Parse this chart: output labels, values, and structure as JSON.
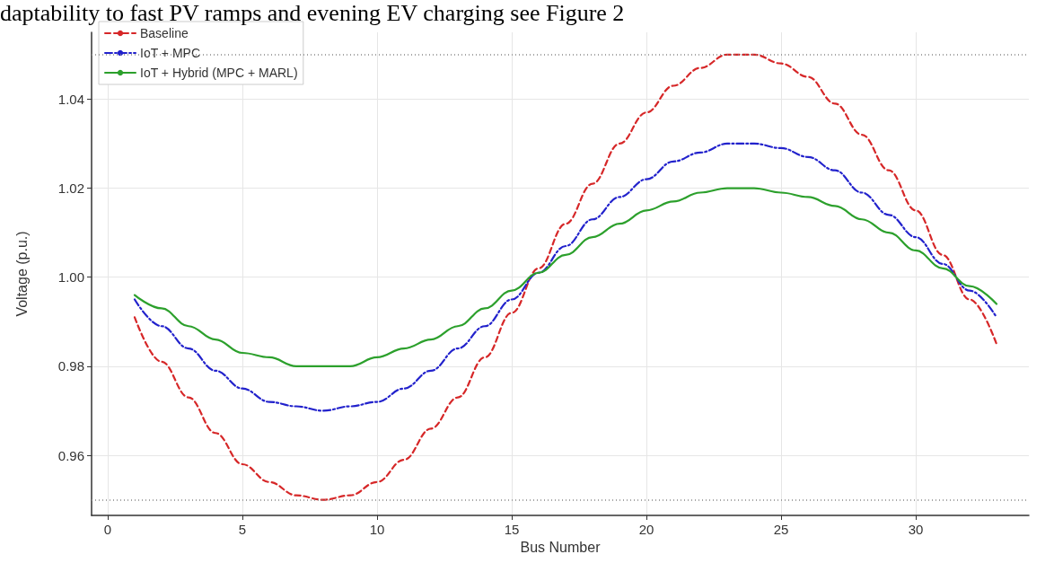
{
  "chart_data": {
    "type": "line",
    "annotations": [
      "daptability to fast PV ramps and evening EV charging see Figure 2"
    ],
    "xlabel": "Bus Number",
    "ylabel": "Voltage (p.u.)",
    "x": [
      1,
      2,
      3,
      4,
      5,
      6,
      7,
      8,
      9,
      10,
      11,
      12,
      13,
      14,
      15,
      16,
      17,
      18,
      19,
      20,
      21,
      22,
      23,
      24,
      25,
      26,
      27,
      28,
      29,
      30,
      31,
      32,
      33
    ],
    "series": [
      {
        "name": "Baseline",
        "color": "#d62728",
        "line_style": "dashed",
        "values": [
          0.991,
          0.981,
          0.973,
          0.965,
          0.958,
          0.954,
          0.951,
          0.95,
          0.951,
          0.954,
          0.959,
          0.966,
          0.973,
          0.982,
          0.992,
          1.002,
          1.012,
          1.021,
          1.03,
          1.037,
          1.043,
          1.047,
          1.05,
          1.05,
          1.048,
          1.045,
          1.039,
          1.032,
          1.024,
          1.015,
          1.005,
          0.995,
          0.985
        ]
      },
      {
        "name": "IoT + MPC",
        "color": "#2222cc",
        "line_style": "dashdot",
        "values": [
          0.995,
          0.989,
          0.984,
          0.979,
          0.975,
          0.972,
          0.971,
          0.97,
          0.971,
          0.972,
          0.975,
          0.979,
          0.984,
          0.989,
          0.995,
          1.001,
          1.007,
          1.013,
          1.018,
          1.022,
          1.026,
          1.028,
          1.03,
          1.03,
          1.029,
          1.027,
          1.024,
          1.019,
          1.014,
          1.009,
          1.003,
          0.997,
          0.991
        ]
      },
      {
        "name": "IoT + Hybrid (MPC + MARL)",
        "color": "#2ca02c",
        "line_style": "solid",
        "values": [
          0.996,
          0.993,
          0.989,
          0.986,
          0.983,
          0.982,
          0.98,
          0.98,
          0.98,
          0.982,
          0.984,
          0.986,
          0.989,
          0.993,
          0.997,
          1.001,
          1.005,
          1.009,
          1.012,
          1.015,
          1.017,
          1.019,
          1.02,
          1.02,
          1.019,
          1.018,
          1.016,
          1.013,
          1.01,
          1.006,
          1.002,
          0.998,
          0.994
        ]
      }
    ],
    "ref_lines": [
      {
        "axis": "y",
        "value": 1.05,
        "color": "#888888",
        "line_style": "dotted"
      },
      {
        "axis": "y",
        "value": 0.95,
        "color": "#888888",
        "line_style": "dotted"
      }
    ],
    "xlim": [
      -0.6,
      34.2
    ],
    "xticks": [
      0,
      5,
      10,
      15,
      20,
      25,
      30
    ],
    "ylim": [
      0.9465,
      1.055
    ],
    "yticks": [
      0.96,
      0.98,
      {
        "value": 1,
        "label": "1.00"
      },
      1.02,
      1.04
    ],
    "grid": true,
    "legend": "top left",
    "marker": "none"
  }
}
